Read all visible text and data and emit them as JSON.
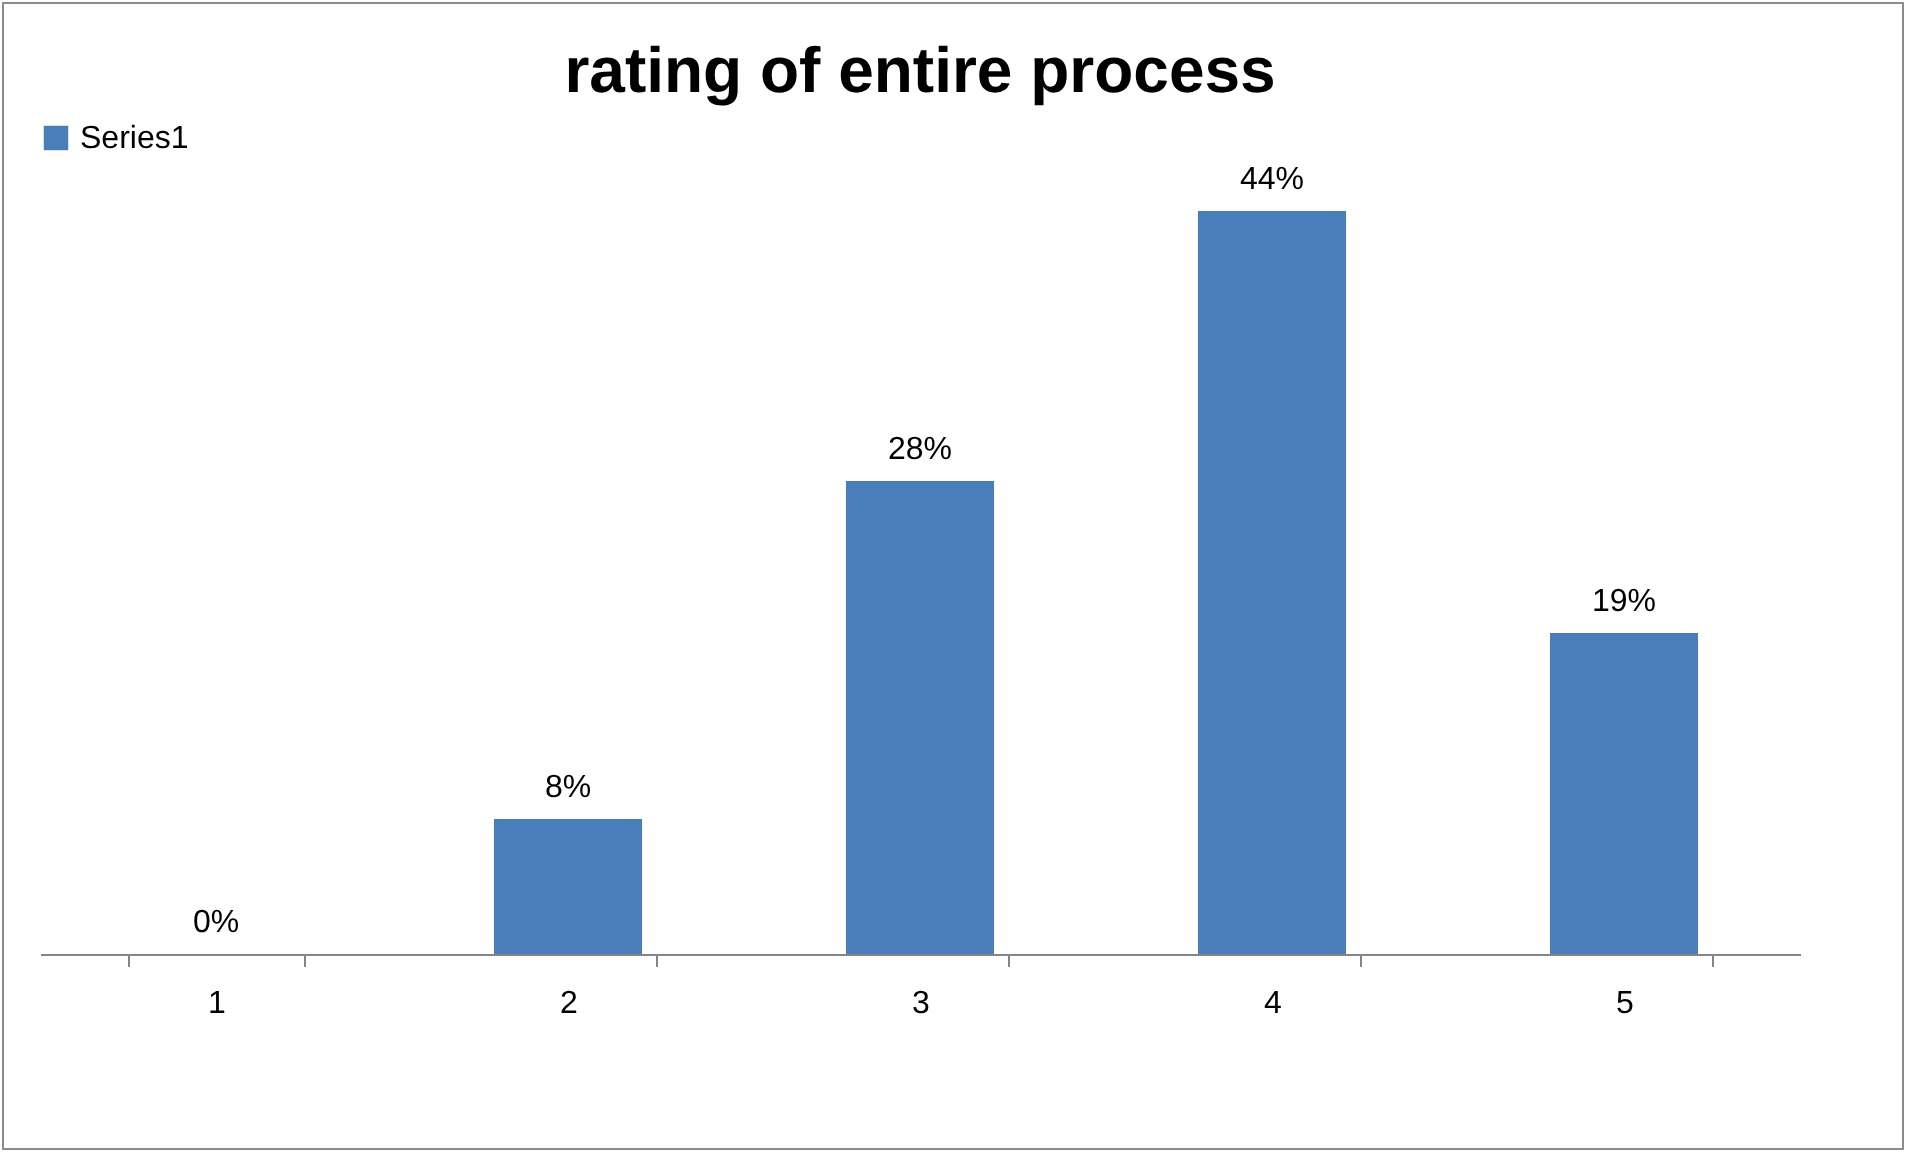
{
  "chart_data": {
    "type": "bar",
    "title": "rating of entire process",
    "categories": [
      "1",
      "2",
      "3",
      "4",
      "5"
    ],
    "series": [
      {
        "name": "Series1",
        "color": "#4a7ebb",
        "values": [
          0,
          8,
          28,
          44,
          19
        ],
        "value_labels": [
          "0%",
          "8%",
          "28%",
          "44%",
          "19%"
        ]
      }
    ],
    "legend": "top"
  }
}
